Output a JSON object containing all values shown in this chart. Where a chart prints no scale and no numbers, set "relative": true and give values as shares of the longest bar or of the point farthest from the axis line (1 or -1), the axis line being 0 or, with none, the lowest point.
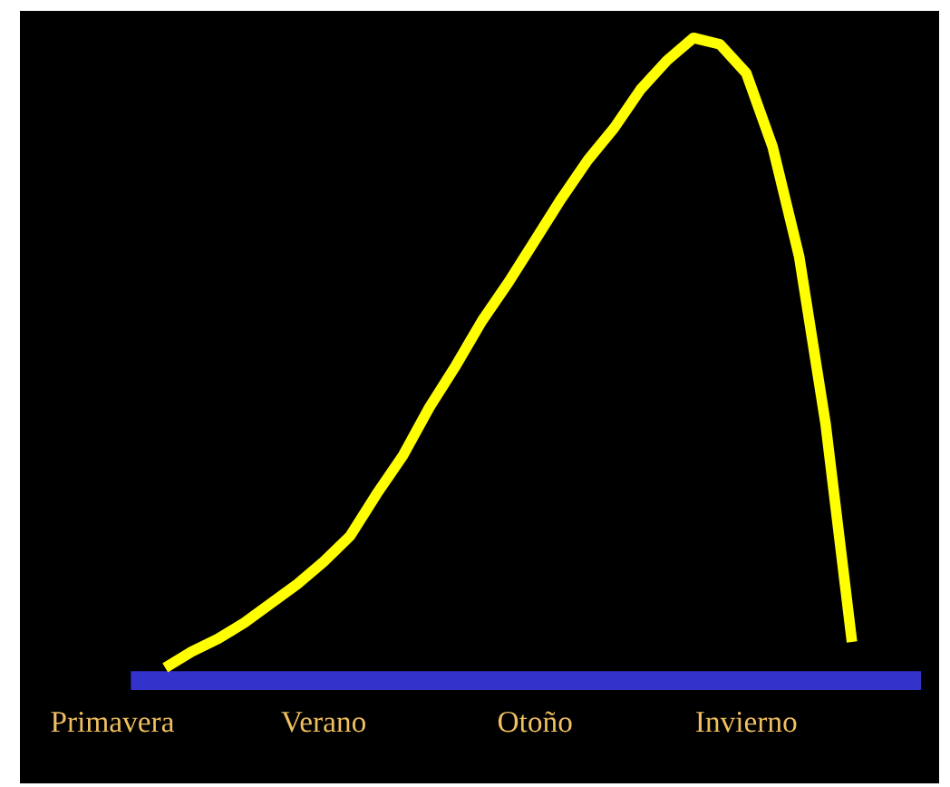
{
  "chart_data": {
    "type": "line",
    "relative": true,
    "categories": [
      "Primavera",
      null,
      null,
      null,
      null,
      null,
      null,
      null,
      "Verano",
      null,
      null,
      null,
      null,
      null,
      null,
      null,
      "Otoño",
      null,
      null,
      null,
      null,
      null,
      null,
      null,
      "Invierno",
      null,
      null,
      null,
      null
    ],
    "series": [
      {
        "color": "#ffff00",
        "values": [
          null,
          null,
          0.02,
          0.045,
          0.065,
          0.09,
          0.12,
          0.15,
          0.185,
          0.225,
          0.29,
          0.35,
          0.425,
          0.49,
          0.56,
          0.62,
          0.685,
          0.75,
          0.81,
          0.86,
          0.92,
          0.965,
          1.0,
          0.99,
          0.945,
          0.83,
          0.66,
          0.4,
          0.06
        ]
      }
    ],
    "grid": false,
    "legend": false,
    "marker": "none",
    "line_style": "solid"
  }
}
